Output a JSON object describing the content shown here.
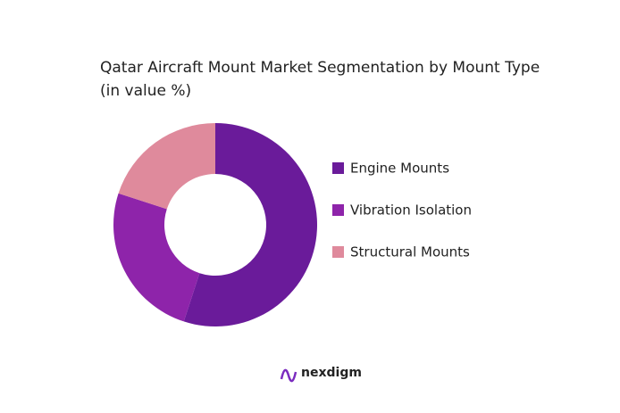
{
  "chart_data": {
    "type": "donut",
    "title": "Qatar Aircraft Mount Market Segmentation by Mount Type (in value %)",
    "categories": [
      "Engine Mounts",
      "Vibration Isolation",
      "Structural Mounts"
    ],
    "values": [
      55,
      25,
      20
    ],
    "colors": [
      "#6a1b9a",
      "#8e24aa",
      "#df8a9c"
    ],
    "legend": "right"
  },
  "footer": {
    "logo": "nexdigm"
  }
}
